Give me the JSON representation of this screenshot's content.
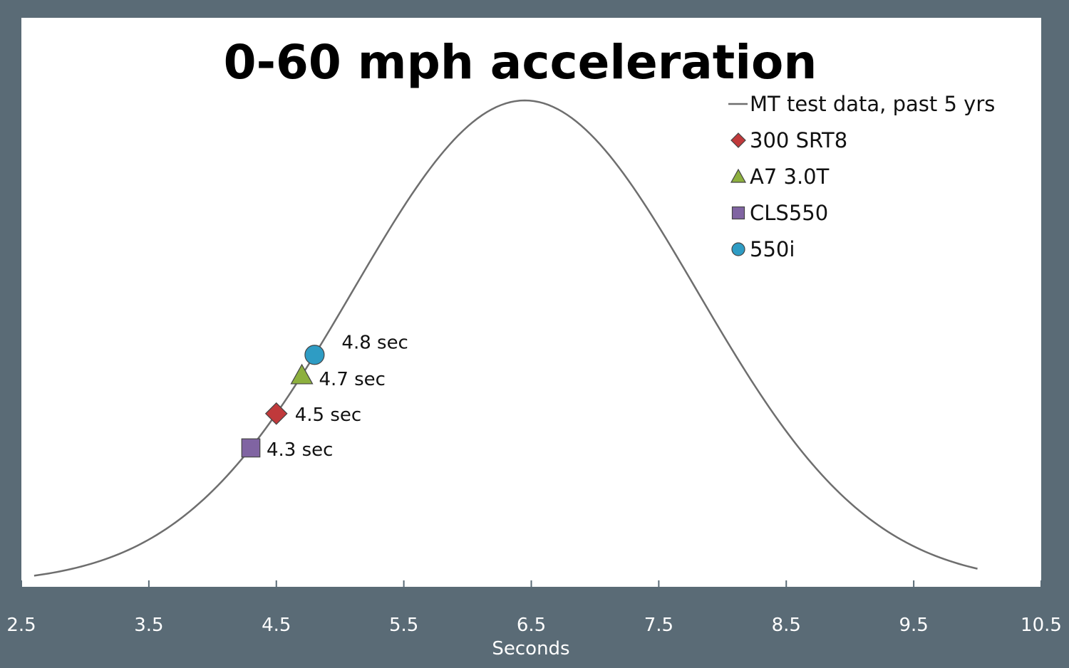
{
  "chart_data": {
    "type": "line",
    "title": "0-60 mph acceleration",
    "xlabel": "Seconds",
    "ylabel": "",
    "xlim": [
      2.5,
      10.5
    ],
    "x_ticks": [
      "2.5",
      "3.5",
      "4.5",
      "5.5",
      "6.5",
      "7.5",
      "8.5",
      "9.5",
      "10.5"
    ],
    "grid": false,
    "legend_position": "top-right",
    "series": [
      {
        "name": "MT test data, past 5 yrs",
        "kind": "normal-distribution-curve",
        "mean": 6.45,
        "std": 1.35,
        "x_range": [
          2.6,
          10.0
        ],
        "color": "#6e6e6e"
      },
      {
        "name": "300 SRT8",
        "marker": "diamond",
        "x": 4.5,
        "label": "4.5 sec",
        "color": "#c0393b"
      },
      {
        "name": "A7 3.0T",
        "marker": "triangle",
        "x": 4.7,
        "label": "4.7 sec",
        "color": "#8db03e"
      },
      {
        "name": "CLS550",
        "marker": "square",
        "x": 4.3,
        "label": "4.3 sec",
        "color": "#8064a2"
      },
      {
        "name": "550i",
        "marker": "circle",
        "x": 4.8,
        "label": "4.8 sec",
        "color": "#2e9cc4"
      }
    ]
  },
  "colors": {
    "frame": "#5a6b76",
    "plot_background": "#ffffff"
  }
}
